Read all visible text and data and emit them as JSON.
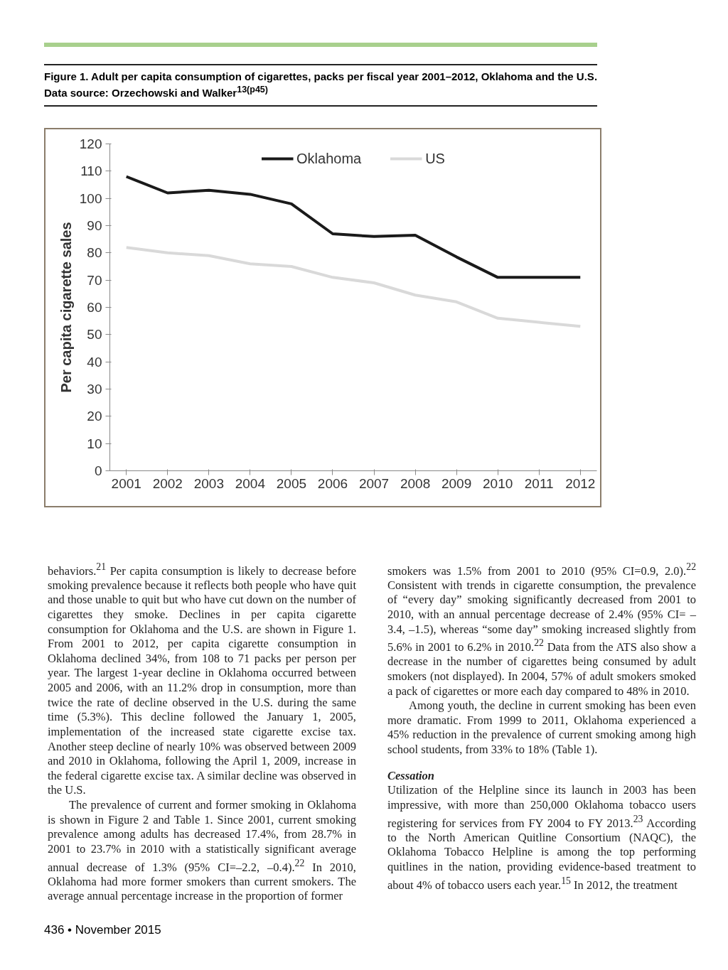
{
  "chart_data": {
    "type": "line",
    "title": "Figure 1. Adult per capita consumption of cigarettes, packs per fiscal year 2001–2012, Oklahoma and the U.S.",
    "subtitle": "Data source: Orzechowski and Walker$^{13(p45)}$",
    "ylabel": "Per capita cigarette sales",
    "categories": [
      "2001",
      "2002",
      "2003",
      "2004",
      "2005",
      "2006",
      "2007",
      "2008",
      "2009",
      "2010",
      "2011",
      "2012"
    ],
    "series": [
      {
        "name": "Oklahoma",
        "color": "#1a1a1a",
        "values": [
          108,
          102,
          103,
          101.5,
          98,
          87,
          86,
          86.5,
          78.5,
          71,
          71,
          71
        ]
      },
      {
        "name": "US",
        "color": "#d9d9d9",
        "values": [
          82,
          80,
          79,
          76,
          75,
          71,
          69,
          64.5,
          62,
          56,
          54.5,
          53
        ]
      }
    ],
    "ylim": [
      0,
      120
    ],
    "yticks": [
      0,
      10,
      20,
      30,
      40,
      50,
      60,
      70,
      80,
      90,
      100,
      110,
      120
    ],
    "grid": false,
    "legend": "top",
    "marker": "none",
    "line_style": "solid",
    "annotations": [
      "behaviors.$^{21}$ Per capita consumption is likely to decrease before smoking prevalence because it reflects both people who have quit and those unable to quit but who have cut down on the number of cigarettes they smoke. Declines in per capita cigarette consumption for Oklahoma and the U.S. are shown in Figure 1. From 2001 to 2012, per capita cigarette consumption in Oklahoma declined 34%, from 108 to 71 packs per person per year. The largest 1-year decline in Oklahoma occurred between 2005 and 2006, with an 11.2% drop in consumption, more than twice the rate of decline observed in the U.S. during the same time (5.3%). This decline followed the January 1, 2005, implementation of the increased state cigarette excise tax. Another steep decline of nearly 10% was observed between 2009 and 2010 in Oklahoma, following the April 1, 2009, increase in the federal cigarette excise tax. A similar decline was observed in the U.S.",
      "The prevalence of current and former smoking in Oklahoma is shown in Figure 2 and Table 1. Since 2001, current smoking prevalence among adults has decreased 17.4%, from 28.7% in 2001 to 23.7% in 2010 with a statistically significant average annual decrease of 1.3% (95% CI=–2.2, –0.4).$^{22}$ In 2010, Oklahoma had more former smokers than current smokers. The average annual percentage increase in the proportion of former",
      "smokers was 1.5% from 2001 to 2010 (95% CI=0.9, 2.0).$^{22}$ Consistent with trends in cigarette consumption, the prevalence of “every day” smoking significantly decreased from 2001 to 2010, with an annual percentage decrease of 2.4% (95% CI= –3.4, –1.5), whereas “some day” smoking increased slightly from 5.6% in 2001 to 6.2% in 2010.$^{22}$ Data from the ATS also show a decrease in the number of cigarettes being consumed by adult smokers (not displayed). In 2004, 57% of adult smokers smoked a pack of cigarettes or more each day compared to 48% in 2010.",
      "Among youth, the decline in current smoking has been even more dramatic. From 1999 to 2011, Oklahoma experienced a 45% reduction in the prevalence of current smoking among high school students, from 33% to 18% (Table 1).",
      "Cessation",
      "Utilization of the Helpline since its launch in 2003 has been impressive, with more than 250,000 Oklahoma tobacco users registering for services from FY 2004 to FY 2013.$^{23}$ According to the North American Quitline Consortium (NAQC), the Oklahoma Tobacco Helpline is among the top performing quitlines in the nation, providing evidence-based treatment to about 4% of tobacco users each year.$^{15}$ In 2012, the treatment",
      "436 • November 2015"
    ]
  }
}
